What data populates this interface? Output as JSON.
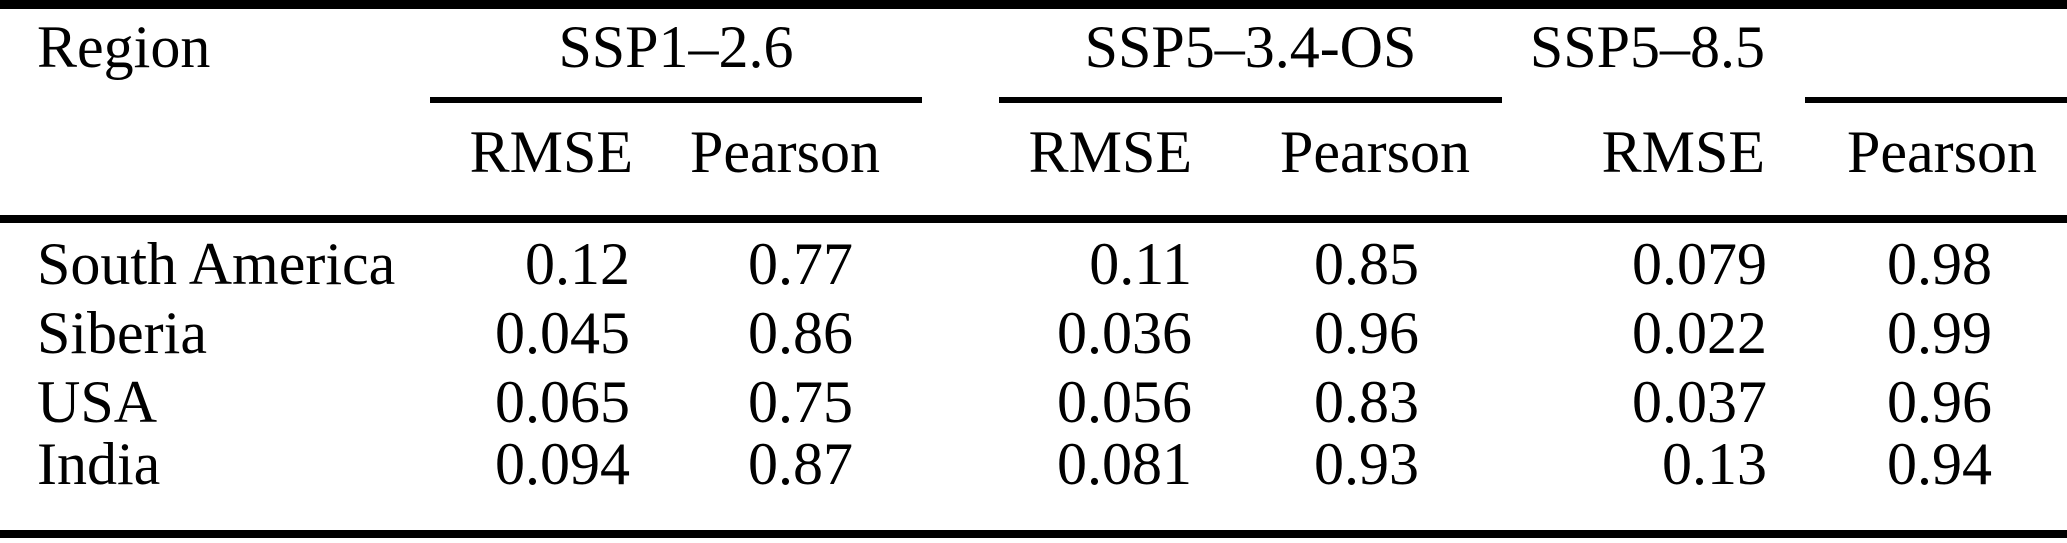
{
  "colors": {
    "text": "#000000",
    "rule": "#000000",
    "background": "#ffffff"
  },
  "table": {
    "row_header_label": "Region",
    "groups": [
      {
        "label": "SSP1–2.6",
        "sub_headers": [
          "RMSE",
          "Pearson"
        ]
      },
      {
        "label": "SSP5–3.4-OS",
        "sub_headers": [
          "RMSE",
          "Pearson"
        ]
      },
      {
        "label": "SSP5–8.5",
        "sub_headers": [
          "RMSE",
          "Pearson"
        ]
      }
    ],
    "rows": [
      {
        "region": "South America",
        "values": [
          "0.12",
          "0.77",
          "0.11",
          "0.85",
          "0.079",
          "0.98"
        ]
      },
      {
        "region": "Siberia",
        "values": [
          "0.045",
          "0.86",
          "0.036",
          "0.96",
          "0.022",
          "0.99"
        ]
      },
      {
        "region": "USA",
        "values": [
          "0.065",
          "0.75",
          "0.056",
          "0.83",
          "0.037",
          "0.96"
        ]
      },
      {
        "region": "India",
        "values": [
          "0.094",
          "0.87",
          "0.081",
          "0.93",
          "0.13",
          "0.94"
        ]
      }
    ]
  }
}
